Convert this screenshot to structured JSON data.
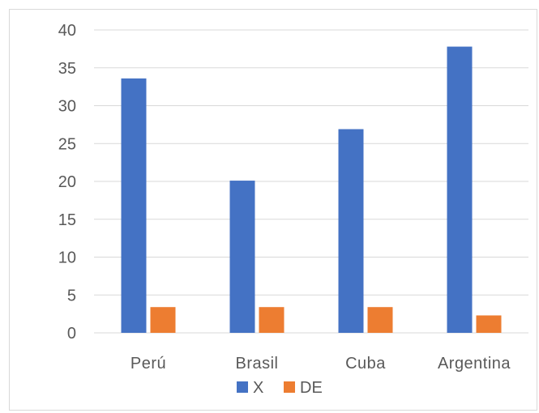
{
  "chart_data": {
    "type": "bar",
    "categories": [
      "Perú",
      "Brasil",
      "Cuba",
      "Argentina"
    ],
    "series": [
      {
        "name": "X",
        "values": [
          33.6,
          20.1,
          26.9,
          37.8
        ],
        "color": "#4472c4"
      },
      {
        "name": "DE",
        "values": [
          3.4,
          3.4,
          3.4,
          2.3
        ],
        "color": "#ed7d31"
      }
    ],
    "ylim": [
      0,
      40
    ],
    "yticks": [
      0,
      5,
      10,
      15,
      20,
      25,
      30,
      35,
      40
    ],
    "grid": true,
    "legend_position": "bottom",
    "title": "",
    "xlabel": "",
    "ylabel": ""
  }
}
